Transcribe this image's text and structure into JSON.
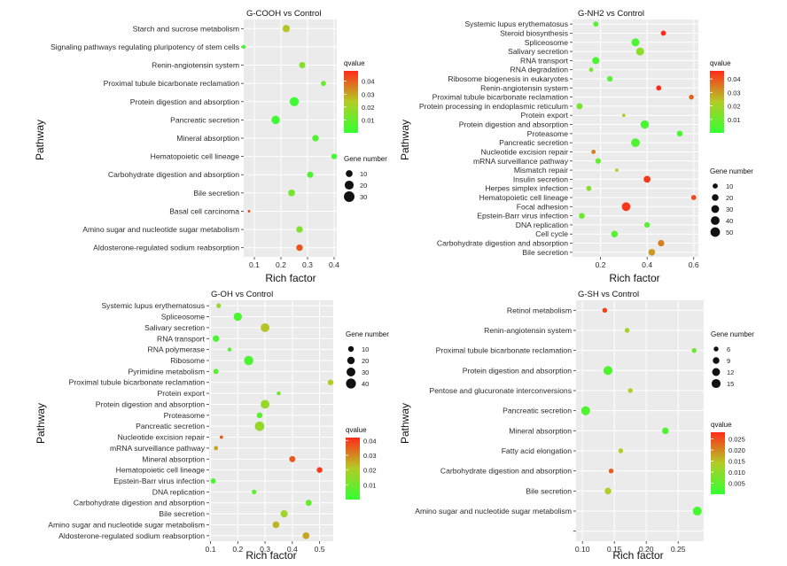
{
  "colors": {
    "qlow": "#33ff33",
    "qhigh": "#ff2a1a",
    "panel_bg": "#ebebeb",
    "dot_outline": "none"
  },
  "chart_data": [
    {
      "type": "scatter",
      "title": "G-COOH vs Control",
      "xlabel": "Rich factor",
      "ylabel": "Pathway",
      "xlim": [
        0.06,
        0.41
      ],
      "xticks": [
        0.1,
        0.2,
        0.3,
        0.4
      ],
      "xtick_labels": [
        "0.1",
        "0.2",
        "0.3",
        "0.4"
      ],
      "qvalue_range": [
        0.0,
        0.048
      ],
      "qvalue_ticks": [
        0.01,
        0.02,
        0.03,
        0.04
      ],
      "qvalue_labels": [
        "0.01",
        "0.02",
        "0.03",
        "0.04"
      ],
      "gene_legend_title": "Gene number",
      "gene_legend_values": [
        10,
        20,
        30
      ],
      "gene_legend_labels": [
        "10",
        "20",
        "30"
      ],
      "legend_order": "q_first",
      "qvalue_title": "qvalue",
      "categories": [
        "Aldosterone-regulated sodium reabsorption",
        "Amino sugar and nucleotide sugar metabolism",
        "Basal cell carcinoma",
        "Bile secretion",
        "Carbohydrate digestion and absorption",
        "Hematopoietic cell lineage",
        "Mineral absorption",
        "Pancreatic secretion",
        "Protein digestion and absorption",
        "Proximal tubule bicarbonate reclamation",
        "Renin-angiotensin system",
        "Signaling pathways regulating pluripotency of stem cells",
        "Starch and sucrose metabolism"
      ],
      "rich_factor": [
        0.27,
        0.27,
        0.08,
        0.24,
        0.31,
        0.4,
        0.33,
        0.18,
        0.25,
        0.36,
        0.28,
        0.06,
        0.22
      ],
      "gene_number": [
        9,
        9,
        2,
        10,
        8,
        6,
        9,
        17,
        21,
        5,
        8,
        3,
        12
      ],
      "qvalue": [
        0.042,
        0.014,
        0.046,
        0.012,
        0.005,
        0.003,
        0.006,
        0.002,
        0.002,
        0.01,
        0.015,
        0.004,
        0.025
      ],
      "size_scale": {
        "min_gene": 2,
        "max_gene": 33,
        "min_r": 1.4,
        "max_r": 6.2
      }
    },
    {
      "type": "scatter",
      "title": "G-NH2 vs Control",
      "xlabel": "Rich factor",
      "ylabel": "Pathway",
      "xlim": [
        0.08,
        0.62
      ],
      "xticks": [
        0.2,
        0.4,
        0.6
      ],
      "xtick_labels": [
        "0.2",
        "0.4",
        "0.6"
      ],
      "qvalue_range": [
        0.0,
        0.046
      ],
      "qvalue_ticks": [
        0.01,
        0.02,
        0.03,
        0.04
      ],
      "qvalue_labels": [
        "0.01",
        "0.02",
        "0.03",
        "0.04"
      ],
      "gene_legend_title": "Gene number",
      "gene_legend_values": [
        10,
        20,
        30,
        40,
        50
      ],
      "gene_legend_labels": [
        "10",
        "20",
        "30",
        "40",
        "50"
      ],
      "legend_order": "q_first",
      "qvalue_title": "qvalue",
      "categories": [
        "Bile secretion",
        "Carbohydrate digestion and absorption",
        "Cell cycle",
        "DNA replication",
        "Epstein-Barr virus infection",
        "Focal adhesion",
        "Hematopoietic cell lineage",
        "Herpes simplex infection",
        "Insulin secretion",
        "Mismatch repair",
        "mRNA surveillance pathway",
        "Nucleotide excision repair",
        "Pancreatic secretion",
        "Proteasome",
        "Protein digestion and absorption",
        "Protein export",
        "Protein processing in endoplasmic reticulum",
        "Proximal tubule bicarbonate reclamation",
        "Renin-angiotensin system",
        "Ribosome biogenesis in eukaryotes",
        "RNA degradation",
        "RNA transport",
        "Salivary secretion",
        "Spliceosome",
        "Steroid biosynthesis",
        "Systemic lupus erythematosus"
      ],
      "rich_factor": [
        0.42,
        0.46,
        0.26,
        0.4,
        0.12,
        0.31,
        0.6,
        0.15,
        0.4,
        0.27,
        0.19,
        0.17,
        0.35,
        0.54,
        0.39,
        0.3,
        0.11,
        0.59,
        0.45,
        0.24,
        0.16,
        0.18,
        0.37,
        0.35,
        0.47,
        0.18
      ],
      "gene_number": [
        20,
        18,
        20,
        12,
        14,
        40,
        10,
        10,
        22,
        3,
        12,
        6,
        40,
        14,
        36,
        3,
        16,
        9,
        10,
        12,
        6,
        24,
        32,
        32,
        10,
        10
      ],
      "qvalue": [
        0.03,
        0.034,
        0.006,
        0.006,
        0.01,
        0.044,
        0.042,
        0.016,
        0.044,
        0.022,
        0.008,
        0.034,
        0.005,
        0.004,
        0.004,
        0.024,
        0.012,
        0.038,
        0.046,
        0.006,
        0.012,
        0.004,
        0.016,
        0.004,
        0.046,
        0.006
      ],
      "size_scale": {
        "min_gene": 2,
        "max_gene": 55,
        "min_r": 1.2,
        "max_r": 5.6
      }
    },
    {
      "type": "scatter",
      "title": "G-OH vs Control",
      "xlabel": "Rich factor",
      "ylabel": "Pathway",
      "xlim": [
        0.095,
        0.55
      ],
      "xticks": [
        0.1,
        0.2,
        0.3,
        0.4,
        0.5
      ],
      "xtick_labels": [
        "0.1",
        "0.2",
        "0.3",
        "0.4",
        "0.5"
      ],
      "qvalue_range": [
        0.0,
        0.042
      ],
      "qvalue_ticks": [
        0.01,
        0.02,
        0.03,
        0.04
      ],
      "qvalue_labels": [
        "0.01",
        "0.02",
        "0.03",
        "0.04"
      ],
      "gene_legend_title": "Gene number",
      "gene_legend_values": [
        10,
        20,
        30,
        40
      ],
      "gene_legend_labels": [
        "10",
        "20",
        "30",
        "40"
      ],
      "legend_order": "gene_first",
      "qvalue_title": "qvalue",
      "categories": [
        "Aldosterone-regulated sodium reabsorption",
        "Amino sugar and nucleotide sugar metabolism",
        "Bile secretion",
        "Carbohydrate digestion and absorption",
        "DNA replication",
        "Epstein-Barr virus infection",
        "Hematopoietic cell lineage",
        "Mineral absorption",
        "mRNA surveillance pathway",
        "Nucleotide excision repair",
        "Pancreatic secretion",
        "Proteasome",
        "Protein digestion and absorption",
        "Protein export",
        "Proximal tubule bicarbonate reclamation",
        "Pyrimidine metabolism",
        "Ribosome",
        "RNA polymerase",
        "RNA transport",
        "Salivary secretion",
        "Spliceosome",
        "Systemic lupus erythematosus"
      ],
      "rich_factor": [
        0.45,
        0.34,
        0.37,
        0.46,
        0.26,
        0.11,
        0.5,
        0.4,
        0.12,
        0.14,
        0.28,
        0.28,
        0.3,
        0.35,
        0.54,
        0.12,
        0.24,
        0.17,
        0.12,
        0.3,
        0.2,
        0.13
      ],
      "gene_number": [
        16,
        16,
        18,
        12,
        6,
        8,
        10,
        12,
        5,
        3,
        36,
        10,
        30,
        4,
        10,
        8,
        34,
        4,
        14,
        30,
        26,
        6
      ],
      "qvalue": [
        0.026,
        0.024,
        0.018,
        0.008,
        0.006,
        0.004,
        0.04,
        0.036,
        0.026,
        0.036,
        0.016,
        0.006,
        0.016,
        0.01,
        0.02,
        0.006,
        0.004,
        0.006,
        0.004,
        0.022,
        0.004,
        0.016
      ],
      "size_scale": {
        "min_gene": 2,
        "max_gene": 44,
        "min_r": 1.2,
        "max_r": 5.8
      }
    },
    {
      "type": "scatter",
      "title": "G-SH vs Control",
      "xlabel": "Rich factor",
      "ylabel": "Pathway",
      "xlim": [
        0.09,
        0.29
      ],
      "xticks": [
        0.1,
        0.15,
        0.2,
        0.25
      ],
      "xtick_labels": [
        "0.10",
        "0.15",
        "0.20",
        "0.25"
      ],
      "qvalue_range": [
        0.0,
        0.028
      ],
      "qvalue_ticks": [
        0.005,
        0.01,
        0.015,
        0.02,
        0.025
      ],
      "qvalue_labels": [
        "0.005",
        "0.010",
        "0.015",
        "0.020",
        "0.025"
      ],
      "gene_legend_title": "Gene number",
      "gene_legend_values": [
        6,
        9,
        12,
        15
      ],
      "gene_legend_labels": [
        "6",
        "9",
        "12",
        "15"
      ],
      "legend_order": "gene_first",
      "qvalue_title": "qvalue",
      "categories": [
        "",
        "Amino sugar and nucleotide sugar metabolism",
        "Bile secretion",
        "Carbohydrate digestion and absorption",
        "Fatty acid elongation",
        "Mineral absorption",
        "Pancreatic secretion",
        "Pentose and glucuronate interconversions",
        "Protein digestion and absorption",
        "Proximal tubule bicarbonate reclamation",
        "Renin-angiotensin system",
        "Retinol metabolism"
      ],
      "rich_factor": [
        null,
        0.28,
        0.14,
        0.145,
        0.16,
        0.23,
        0.105,
        0.175,
        0.14,
        0.275,
        0.17,
        0.135
      ],
      "gene_number": [
        null,
        15,
        9,
        6,
        6,
        9,
        15,
        6,
        15,
        6,
        6,
        6
      ],
      "qvalue": [
        null,
        0.002,
        0.014,
        0.024,
        0.014,
        0.003,
        0.003,
        0.014,
        0.003,
        0.006,
        0.012,
        0.026
      ],
      "size_scale": {
        "min_gene": 4,
        "max_gene": 17,
        "min_r": 1.0,
        "max_r": 5.4
      }
    }
  ]
}
